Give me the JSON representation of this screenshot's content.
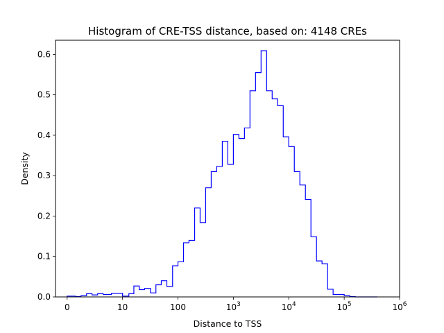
{
  "chart_data": {
    "type": "histogram",
    "title": "Histogram of CRE-TSS distance, based on: 4148 CREs",
    "xlabel": "Distance to TSS",
    "ylabel": "Density",
    "xscale": "symlog",
    "xlim": [
      0,
      1000000
    ],
    "ylim": [
      0,
      0.635
    ],
    "grid": false,
    "legend": "none",
    "step_color": "#0000ff",
    "x_ticks": [
      {
        "value": 0,
        "base": "0",
        "exp": ""
      },
      {
        "value": 10,
        "base": "10",
        "exp": ""
      },
      {
        "value": 100,
        "base": "100",
        "exp": ""
      },
      {
        "value": 1000,
        "base": "10",
        "exp": "3"
      },
      {
        "value": 10000,
        "base": "10",
        "exp": "4"
      },
      {
        "value": 100000,
        "base": "10",
        "exp": "5"
      },
      {
        "value": 1000000,
        "base": "10",
        "exp": "6"
      }
    ],
    "y_ticks": [
      "0.0",
      "0.1",
      "0.2",
      "0.3",
      "0.4",
      "0.5",
      "0.6"
    ],
    "bin_edges": [
      0,
      1.5,
      2.5,
      3.5,
      4.5,
      5.5,
      6.5,
      8,
      10,
      13,
      16,
      20,
      25,
      32,
      40,
      50,
      63,
      80,
      100,
      126,
      158,
      200,
      251,
      316,
      398,
      501,
      631,
      794,
      1000,
      1259,
      1585,
      1995,
      2512,
      3162,
      3981,
      5012,
      6310,
      7943,
      10000,
      12589,
      15849,
      19953,
      25119,
      31623,
      39811,
      50119,
      63096,
      79433,
      100000,
      125893,
      158489,
      199526,
      251189,
      398107
    ],
    "densities": [
      0.002,
      0.001,
      0.003,
      0.008,
      0.005,
      0.008,
      0.006,
      0.009,
      0.002,
      0.008,
      0.027,
      0.018,
      0.021,
      0.01,
      0.03,
      0.04,
      0.026,
      0.077,
      0.087,
      0.134,
      0.14,
      0.22,
      0.184,
      0.27,
      0.31,
      0.323,
      0.385,
      0.328,
      0.402,
      0.392,
      0.418,
      0.51,
      0.555,
      0.609,
      0.51,
      0.49,
      0.473,
      0.396,
      0.372,
      0.31,
      0.277,
      0.241,
      0.149,
      0.089,
      0.082,
      0.019,
      0.006,
      0.006,
      0.003,
      0.001,
      0.0,
      0.0,
      0.0
    ]
  }
}
